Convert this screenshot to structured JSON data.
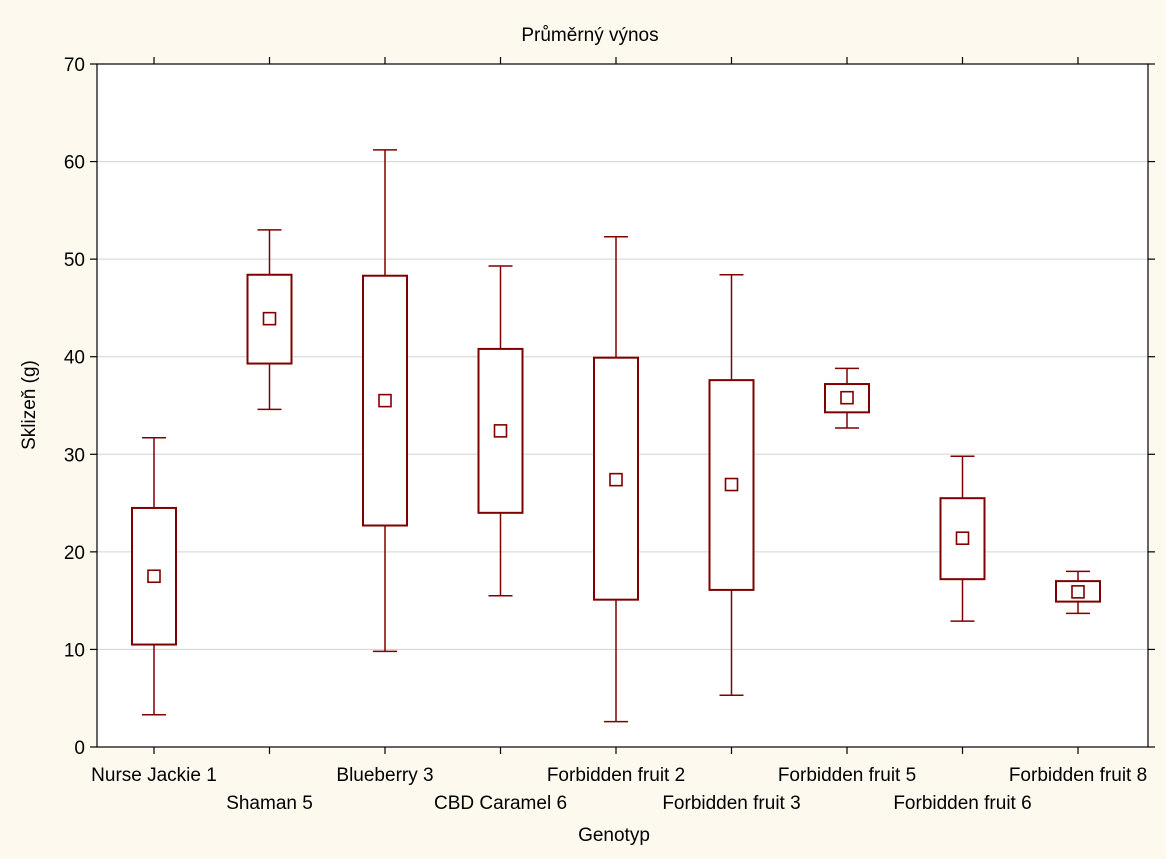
{
  "chart_data": {
    "type": "box",
    "title": "Průměrný výnos",
    "xlabel": "Genotyp",
    "ylabel": "Sklizeň (g)",
    "ylim": [
      0,
      70
    ],
    "yticks": [
      0,
      10,
      20,
      30,
      40,
      50,
      60,
      70
    ],
    "grid": true,
    "categories": [
      "Nurse Jackie 1",
      "Shaman 5",
      "Blueberry 3",
      "CBD Caramel 6",
      "Forbidden fruit 2",
      "Forbidden fruit 3",
      "Forbidden fruit 5",
      "Forbidden fruit 6",
      "Forbidden fruit 8"
    ],
    "boxes": [
      {
        "mean": 17.5,
        "box_low": 10.5,
        "box_high": 24.5,
        "whisker_low": 3.3,
        "whisker_high": 31.7
      },
      {
        "mean": 43.9,
        "box_low": 39.3,
        "box_high": 48.4,
        "whisker_low": 34.6,
        "whisker_high": 53.0
      },
      {
        "mean": 35.5,
        "box_low": 22.7,
        "box_high": 48.3,
        "whisker_low": 9.8,
        "whisker_high": 61.2
      },
      {
        "mean": 32.4,
        "box_low": 24.0,
        "box_high": 40.8,
        "whisker_low": 15.5,
        "whisker_high": 49.3
      },
      {
        "mean": 27.4,
        "box_low": 15.1,
        "box_high": 39.9,
        "whisker_low": 2.6,
        "whisker_high": 52.3
      },
      {
        "mean": 26.9,
        "box_low": 16.1,
        "box_high": 37.6,
        "whisker_low": 5.3,
        "whisker_high": 48.4
      },
      {
        "mean": 35.8,
        "box_low": 34.3,
        "box_high": 37.2,
        "whisker_low": 32.7,
        "whisker_high": 38.8
      },
      {
        "mean": 21.4,
        "box_low": 17.2,
        "box_high": 25.5,
        "whisker_low": 12.9,
        "whisker_high": 29.8
      },
      {
        "mean": 15.9,
        "box_low": 14.9,
        "box_high": 17.0,
        "whisker_low": 13.7,
        "whisker_high": 18.0
      }
    ],
    "colors": {
      "background": "#fdf9ef",
      "plot_background": "#ffffff",
      "box": "#7f0000",
      "axis": "#000000",
      "grid": "#d3d3d3"
    }
  }
}
